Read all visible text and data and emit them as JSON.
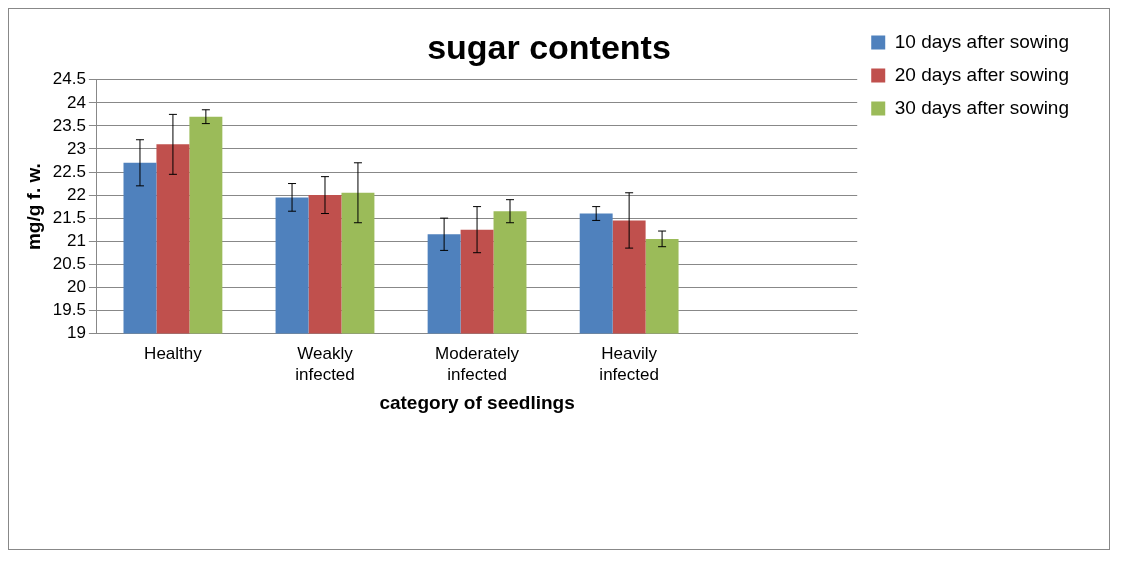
{
  "chart_data": {
    "type": "bar",
    "title": "sugar contents",
    "xlabel": "category of seedlings",
    "ylabel": "mg/g f. w.",
    "categories": [
      "Healthy",
      "Weakly infected",
      "Moderately infected",
      "Heavily infected",
      null
    ],
    "series": [
      {
        "name": "10 days after sowing",
        "color": "#4f81bd",
        "values": [
          22.7,
          21.95,
          21.15,
          21.6,
          null
        ],
        "errors": [
          0.5,
          0.3,
          0.35,
          0.15,
          null
        ]
      },
      {
        "name": "20 days after sowing",
        "color": "#c0504d",
        "values": [
          23.1,
          22.0,
          21.25,
          21.45,
          null
        ],
        "errors": [
          0.65,
          0.4,
          0.5,
          0.6,
          null
        ]
      },
      {
        "name": "30 days after sowing",
        "color": "#9bbb59",
        "values": [
          23.7,
          22.05,
          21.65,
          21.05,
          null
        ],
        "errors": [
          0.15,
          0.65,
          0.25,
          0.17,
          null
        ]
      }
    ],
    "ylim": [
      19,
      24.5
    ],
    "yticks": [
      19,
      19.5,
      20,
      20.5,
      21,
      21.5,
      22,
      22.5,
      23,
      23.5,
      24,
      24.5
    ],
    "grid": "y",
    "legend": "right"
  }
}
